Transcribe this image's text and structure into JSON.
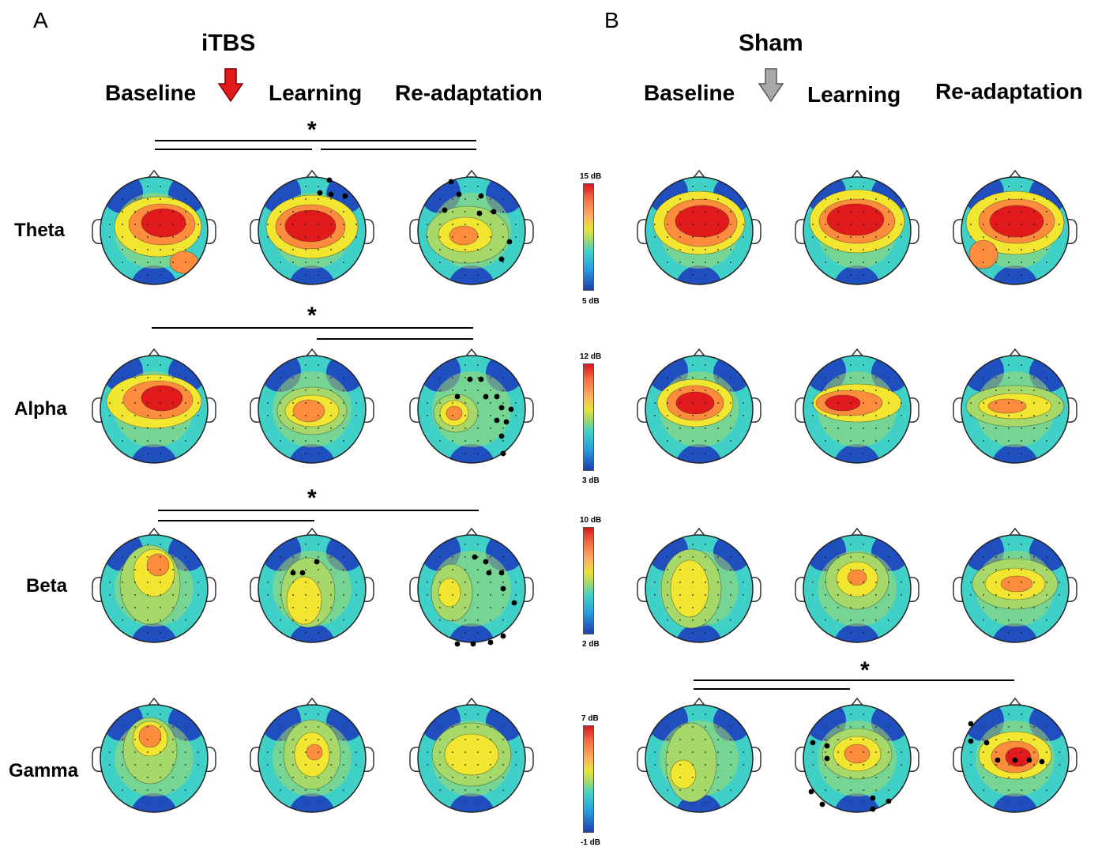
{
  "panels": {
    "A": {
      "letter": "A",
      "condition": "iTBS",
      "arrow_color": "#e31a1c",
      "columns": [
        "Baseline",
        "Learning",
        "Re-adaptation"
      ]
    },
    "B": {
      "letter": "B",
      "condition": "Sham",
      "arrow_color": "#9e9e9e",
      "columns": [
        "Baseline",
        "Learning",
        "Re-adaptation"
      ]
    }
  },
  "bands": [
    "Theta",
    "Alpha",
    "Beta",
    "Gamma"
  ],
  "colorbars": [
    {
      "max": "15 dB",
      "min": "5 dB"
    },
    {
      "max": "12 dB",
      "min": "3 dB"
    },
    {
      "max": "10 dB",
      "min": "2 dB"
    },
    {
      "max": "7 dB",
      "min": "-1 dB"
    }
  ],
  "significance_marker": "*",
  "colors": {
    "red": "#e31a1c",
    "orange": "#fd8d3c",
    "yellow": "#f2e630",
    "green": "#a6d96a",
    "cyan": "#3fd0c8",
    "blue": "#1f4fbf",
    "dark_blue": "#0b2a8a"
  }
}
